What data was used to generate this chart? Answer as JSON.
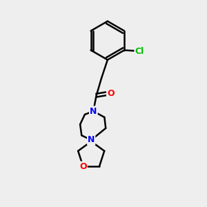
{
  "background_color": "#eeeeee",
  "bond_color": "#000000",
  "bond_width": 1.8,
  "atom_colors": {
    "Cl": "#00bb00",
    "O": "#ff0000",
    "N": "#0000ff",
    "C": "#000000"
  },
  "font_size_atoms": 8,
  "fig_size": [
    3.0,
    3.0
  ],
  "dpi": 100
}
